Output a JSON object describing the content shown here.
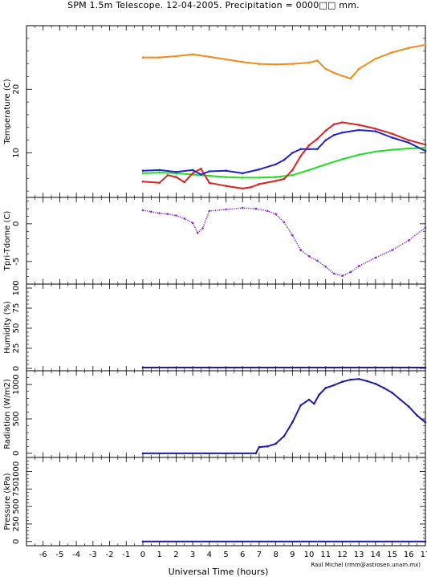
{
  "title": "SPM 1.5m Telescope. 12-04-2005. Precipitation = 0000□□ mm.",
  "credit": "Raul Michel (rmm@astrosen.unam.mx)",
  "xlabel": "Universal Time (hours)",
  "chart_data": [
    {
      "type": "line",
      "ylabel": "Temperature (C)",
      "xlim": [
        -7,
        17
      ],
      "ylim": [
        3,
        30
      ],
      "yticks_major": [
        10,
        20
      ],
      "yticks_minor": [
        4,
        6,
        8,
        12,
        14,
        16,
        18,
        22,
        24,
        26,
        28
      ],
      "series": [
        {
          "color": "#f08c1e",
          "x": [
            0,
            1,
            2,
            3,
            4,
            5,
            6,
            7,
            8,
            9,
            10,
            10.5,
            11,
            11.5,
            12,
            12.5,
            13,
            14,
            15,
            16,
            17
          ],
          "y": [
            25,
            25,
            25.2,
            25.5,
            25.1,
            24.7,
            24.3,
            24,
            23.9,
            24,
            24.2,
            24.5,
            23.2,
            22.6,
            22.1,
            21.7,
            23.2,
            24.8,
            25.8,
            26.5,
            27
          ]
        },
        {
          "color": "#22dd22",
          "x": [
            0,
            1,
            2,
            3,
            4,
            5,
            6,
            7,
            8,
            9,
            10,
            11,
            12,
            13,
            14,
            15,
            16,
            17
          ],
          "y": [
            6.8,
            6.9,
            6.8,
            6.6,
            6.4,
            6.2,
            6.1,
            6.1,
            6.2,
            6.5,
            7.3,
            8.2,
            9,
            9.7,
            10.2,
            10.5,
            10.7,
            10.8
          ]
        },
        {
          "color": "#dd2222",
          "x": [
            0,
            1,
            1.5,
            2,
            2.5,
            3,
            3.5,
            4,
            5,
            6,
            6.5,
            7,
            8,
            8.5,
            9,
            9.5,
            10,
            10.5,
            11,
            11.5,
            12,
            13,
            14,
            15,
            16,
            17
          ],
          "y": [
            5.5,
            5.3,
            6.5,
            6.2,
            5.4,
            6.8,
            7.5,
            5.3,
            4.8,
            4.4,
            4.6,
            5.1,
            5.6,
            5.9,
            7.3,
            9.5,
            11.2,
            12.2,
            13.5,
            14.5,
            14.8,
            14.4,
            13.8,
            13,
            12,
            11.3
          ]
        },
        {
          "color": "#2222cc",
          "x": [
            0,
            1,
            2,
            3,
            3.5,
            4,
            5,
            6,
            7,
            8,
            8.5,
            9,
            9.5,
            10,
            10.5,
            11,
            11.5,
            12,
            13,
            14,
            15,
            16,
            17
          ],
          "y": [
            7.2,
            7.3,
            7,
            7.3,
            6.6,
            7.1,
            7.2,
            6.8,
            7.4,
            8.2,
            8.9,
            10,
            10.6,
            10.6,
            10.6,
            12,
            12.8,
            13.2,
            13.6,
            13.4,
            12.4,
            11.6,
            10.3
          ]
        }
      ]
    },
    {
      "type": "scatter",
      "ylabel": "Tpri-Tdome (C)",
      "xlim": [
        -7,
        17
      ],
      "ylim": [
        -8,
        3.5
      ],
      "yticks_major": [
        -5,
        0
      ],
      "yticks_minor": [
        -7,
        -6,
        -4,
        -3,
        -2,
        -1,
        1,
        2,
        3
      ],
      "series": [
        {
          "color": "#8822cc",
          "x": [
            0,
            0.5,
            1,
            1.5,
            2,
            2.5,
            3,
            3.3,
            3.6,
            4,
            5,
            6,
            6.8,
            7.5,
            8,
            8.5,
            9,
            9.5,
            10,
            10.5,
            11,
            11.5,
            12,
            12.5,
            13,
            14,
            15,
            16,
            17
          ],
          "y": [
            1.8,
            1.6,
            1.4,
            1.3,
            1.1,
            0.7,
            0.1,
            -1.2,
            -0.6,
            1.7,
            1.9,
            2.1,
            2,
            1.7,
            1.3,
            0.2,
            -1.5,
            -3.5,
            -4.3,
            -4.9,
            -5.7,
            -6.6,
            -6.9,
            -6.4,
            -5.6,
            -4.5,
            -3.5,
            -2.2,
            -0.5
          ]
        }
      ]
    },
    {
      "type": "line",
      "ylabel": "Humidity (%)",
      "xlim": [
        -7,
        17
      ],
      "ylim": [
        -3,
        105
      ],
      "yticks_major": [
        0,
        25,
        50,
        75,
        100
      ],
      "yticks_minor": [
        5,
        10,
        15,
        20,
        30,
        35,
        40,
        45,
        55,
        60,
        65,
        70,
        80,
        85,
        90,
        95
      ],
      "series": [
        {
          "color": "#1c1caa",
          "x": [
            0,
            17
          ],
          "y": [
            1,
            1
          ]
        }
      ]
    },
    {
      "type": "line",
      "ylabel": "Radiation (W/m2)",
      "xlim": [
        -7,
        17
      ],
      "ylim": [
        -60,
        1200
      ],
      "yticks_major": [
        0,
        500,
        1000
      ],
      "yticks_minor": [
        100,
        200,
        300,
        400,
        600,
        700,
        800,
        900,
        1100
      ],
      "series": [
        {
          "color": "#1c1caa",
          "x": [
            0,
            6.8,
            7,
            7.5,
            8,
            8.5,
            9,
            9.5,
            10,
            10.3,
            10.6,
            11,
            11.5,
            12,
            12.5,
            13,
            13.5,
            14,
            14.5,
            15,
            15.5,
            16,
            16.5,
            17
          ],
          "y": [
            0,
            0,
            90,
            100,
            140,
            250,
            450,
            700,
            780,
            720,
            850,
            950,
            990,
            1040,
            1070,
            1080,
            1050,
            1010,
            950,
            880,
            780,
            680,
            550,
            450
          ]
        }
      ]
    },
    {
      "type": "line",
      "ylabel": "Pressure (kPa)",
      "xlim": [
        -7,
        17
      ],
      "ylim": [
        -60,
        1200
      ],
      "yticks_major": [
        0,
        250,
        500,
        750,
        1000
      ],
      "yticks_minor": [
        50,
        100,
        150,
        200,
        300,
        350,
        400,
        450,
        550,
        600,
        650,
        700,
        800,
        850,
        900,
        950,
        1050,
        1100,
        1150
      ],
      "series": [
        {
          "color": "#1c1caa",
          "x": [
            0,
            17
          ],
          "y": [
            0,
            0
          ]
        }
      ]
    }
  ],
  "xticks": [
    -6,
    -5,
    -4,
    -3,
    -2,
    -1,
    0,
    1,
    2,
    3,
    4,
    5,
    6,
    7,
    8,
    9,
    10,
    11,
    12,
    13,
    14,
    15,
    16,
    17
  ]
}
